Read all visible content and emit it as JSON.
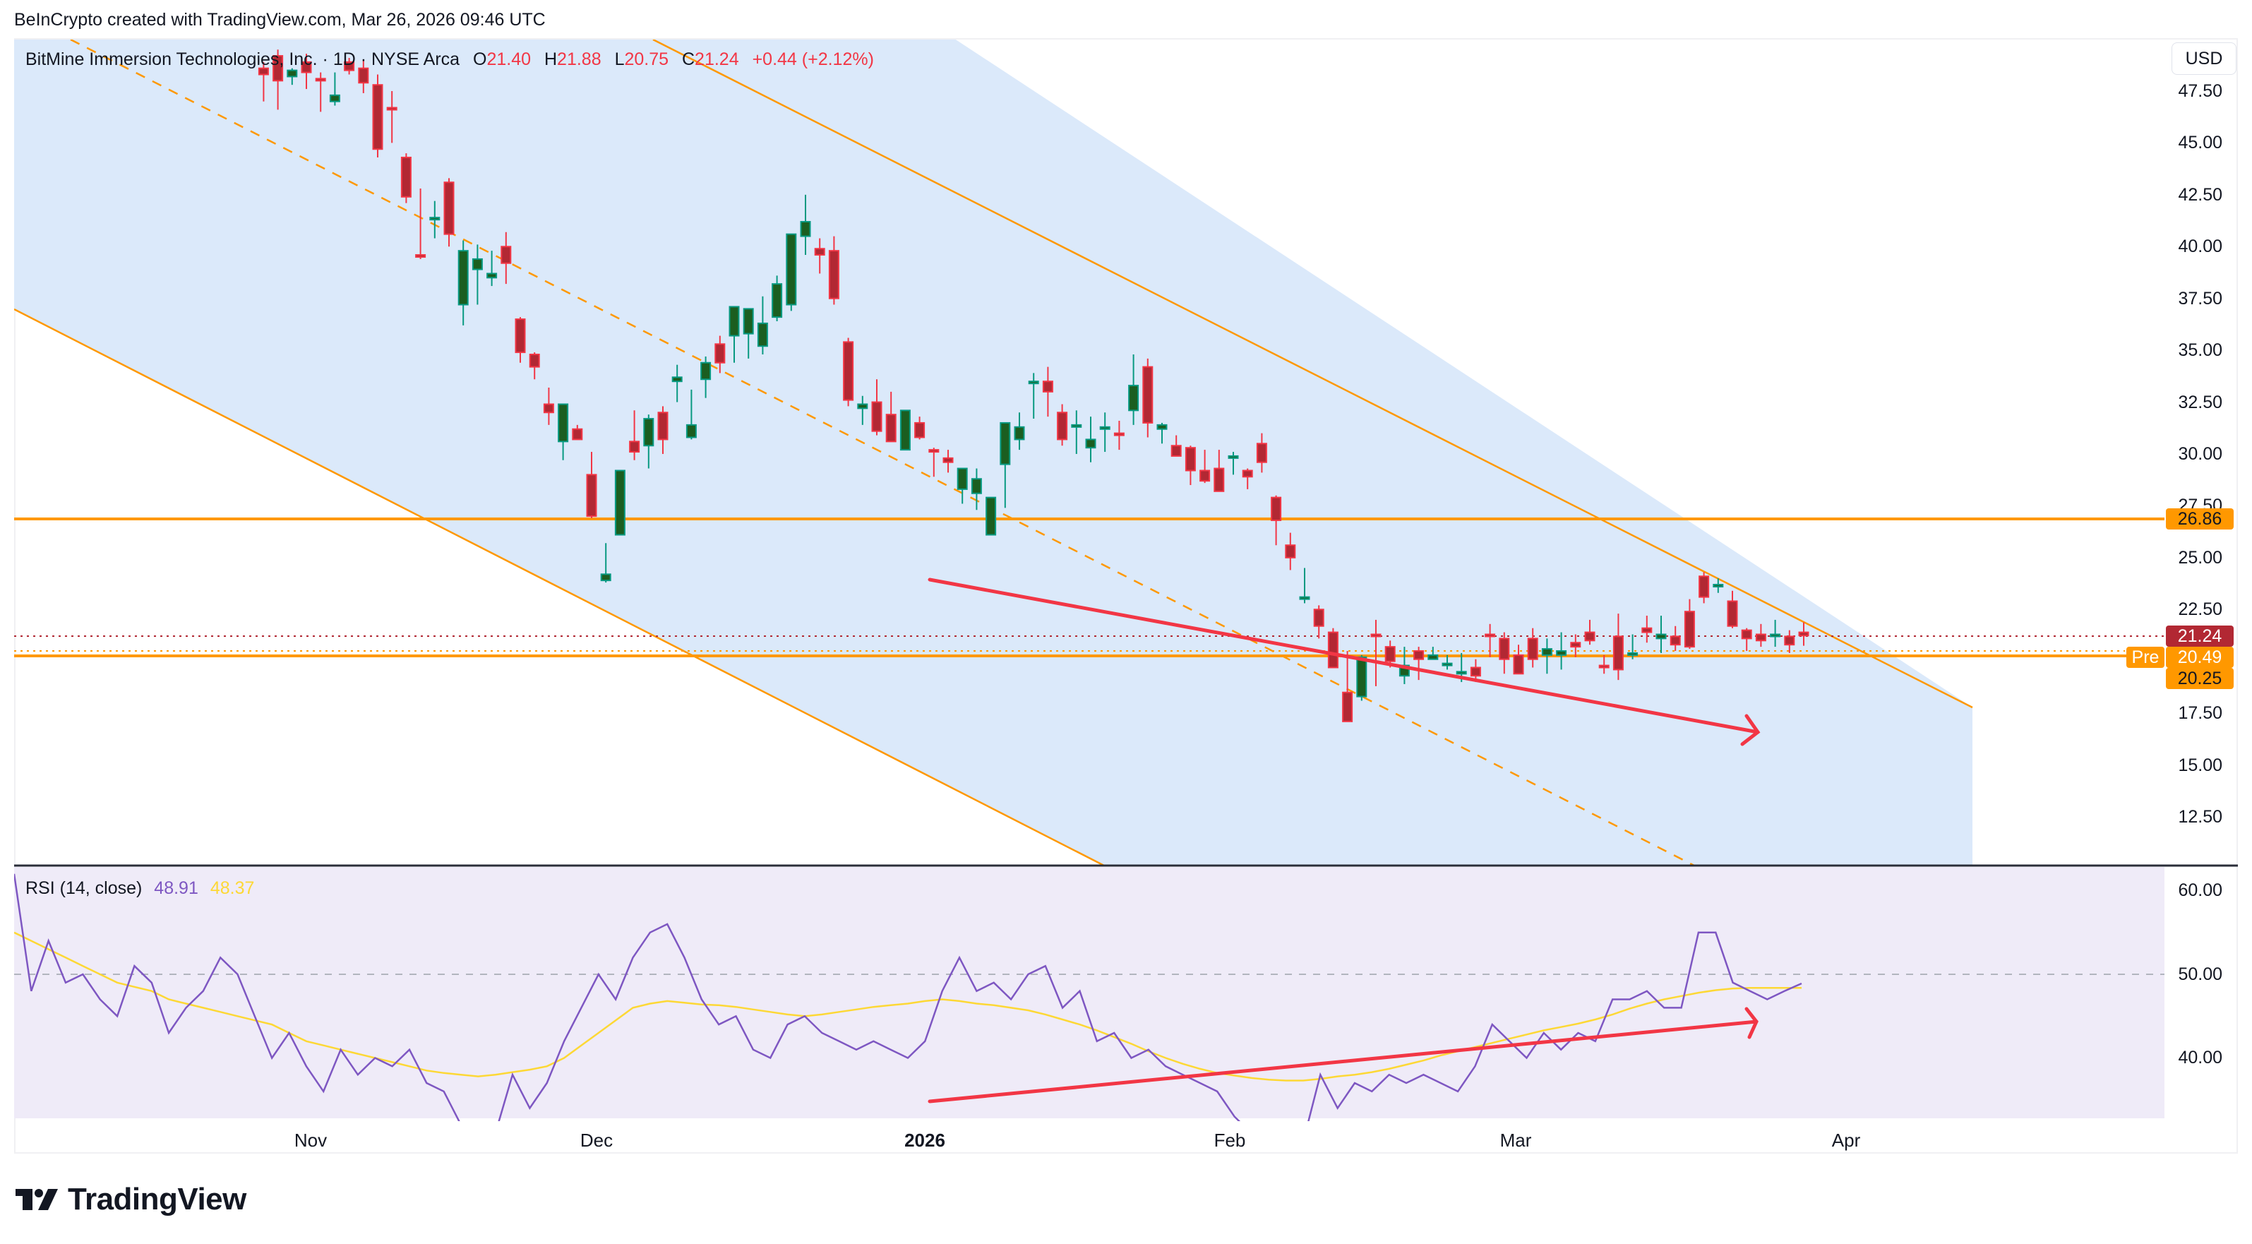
{
  "header": {
    "credit": "BeInCrypto created with TradingView.com, Mar 26, 2026 09:46 UTC"
  },
  "legend": {
    "symbol": "BitMine Immersion Technologies, Inc. · 1D · NYSE Arca",
    "open_label": "O",
    "open": "21.40",
    "high_label": "H",
    "high": "21.88",
    "low_label": "L",
    "low": "20.75",
    "close_label": "C",
    "close": "21.24",
    "change": "+0.44 (+2.12%)"
  },
  "price_axis": {
    "currency": "USD",
    "ticks": [
      "47.50",
      "45.00",
      "42.50",
      "40.00",
      "37.50",
      "35.00",
      "32.50",
      "30.00",
      "27.50",
      "25.00",
      "22.50",
      "17.50",
      "15.00",
      "12.50"
    ],
    "tags": {
      "resistance": "26.86",
      "last": "21.24",
      "pre_label": "Pre",
      "pre": "20.49",
      "support": "20.25"
    }
  },
  "rsi": {
    "label": "RSI (14, close)",
    "value": "48.91",
    "ma_value": "48.37",
    "ticks": [
      "60.00",
      "50.00",
      "40.00"
    ]
  },
  "time_axis": {
    "labels": [
      {
        "text": "Nov",
        "x": 440,
        "bold": false
      },
      {
        "text": "Dec",
        "x": 845,
        "bold": false
      },
      {
        "text": "2026",
        "x": 1310,
        "bold": true
      },
      {
        "text": "Feb",
        "x": 1742,
        "bold": false
      },
      {
        "text": "Mar",
        "x": 2147,
        "bold": false
      },
      {
        "text": "Apr",
        "x": 2615,
        "bold": false
      }
    ]
  },
  "footer": {
    "brand": "TradingView"
  },
  "colors": {
    "up": "#089981",
    "up_body": "#1b5e20",
    "down": "#f23645",
    "down_body": "#b22833",
    "channel_fill": "#dbe9fa",
    "channel_line": "#ff9800",
    "rsi_line": "#7e57c2",
    "rsi_ma": "#fdd835",
    "rsi_bg": "#efebf8",
    "arrow": "#f23645"
  },
  "chart_data": [
    {
      "type": "candlestick",
      "title": "BitMine Immersion Technologies, Inc. · 1D · NYSE Arca",
      "xlabel": "",
      "ylabel": "USD",
      "ylim": [
        10.5,
        49.0
      ],
      "x_ticks": [
        "Nov",
        "Dec",
        "2026",
        "Feb",
        "Mar",
        "Apr"
      ],
      "horizontal_levels": [
        26.86,
        20.25
      ],
      "last_price": 21.24,
      "premarket_price": 20.49,
      "ohlc_legend": {
        "open": 21.4,
        "high": 21.88,
        "low": 20.75,
        "close": 21.24,
        "change": 0.44,
        "change_pct": 2.12
      },
      "annotations": [
        "Descending parallel channel (orange)",
        "Dashed channel midline",
        "Red arrow: lower lows in price (bearish trend)"
      ],
      "candles": [
        [
          48.6,
          48.9,
          47.0,
          48.3
        ],
        [
          49.2,
          49.5,
          46.6,
          48.0
        ],
        [
          48.2,
          48.6,
          47.8,
          48.5
        ],
        [
          48.9,
          49.3,
          47.6,
          48.4
        ],
        [
          48.1,
          48.4,
          46.5,
          48.0
        ],
        [
          47.0,
          48.4,
          46.8,
          47.3
        ],
        [
          48.9,
          49.1,
          48.3,
          48.5
        ],
        [
          48.6,
          49.0,
          47.4,
          47.9
        ],
        [
          47.8,
          48.3,
          44.3,
          44.7
        ],
        [
          46.7,
          47.5,
          45.0,
          46.6
        ],
        [
          44.3,
          44.5,
          42.1,
          42.4
        ],
        [
          39.6,
          42.8,
          39.4,
          39.5
        ],
        [
          41.3,
          42.2,
          40.4,
          41.4
        ],
        [
          43.1,
          43.3,
          40.0,
          40.6
        ],
        [
          37.2,
          40.3,
          36.2,
          39.8
        ],
        [
          38.9,
          40.1,
          37.2,
          39.4
        ],
        [
          38.5,
          39.8,
          38.1,
          38.7
        ],
        [
          40.0,
          40.7,
          38.2,
          39.2
        ],
        [
          36.5,
          36.6,
          34.4,
          34.9
        ],
        [
          34.8,
          34.9,
          33.6,
          34.2
        ],
        [
          32.4,
          33.2,
          31.4,
          32.0
        ],
        [
          30.6,
          32.0,
          29.7,
          32.4
        ],
        [
          31.2,
          31.4,
          30.7,
          30.7
        ],
        [
          29.0,
          30.1,
          26.9,
          27.0
        ],
        [
          23.9,
          25.7,
          23.8,
          24.2
        ],
        [
          26.1,
          28.9,
          27.0,
          29.2
        ],
        [
          30.6,
          32.1,
          29.7,
          30.1
        ],
        [
          30.4,
          31.9,
          29.3,
          31.7
        ],
        [
          32.0,
          32.3,
          30.0,
          30.7
        ],
        [
          33.5,
          34.3,
          32.5,
          33.7
        ],
        [
          30.8,
          33.1,
          30.7,
          31.4
        ],
        [
          33.6,
          34.7,
          32.7,
          34.4
        ],
        [
          35.3,
          35.7,
          33.9,
          34.4
        ],
        [
          35.7,
          37.1,
          34.4,
          37.1
        ],
        [
          35.8,
          36.9,
          34.6,
          37.0
        ],
        [
          35.2,
          37.6,
          34.8,
          36.3
        ],
        [
          36.6,
          38.6,
          36.4,
          38.2
        ],
        [
          37.2,
          40.5,
          36.9,
          40.6
        ],
        [
          40.5,
          42.5,
          39.6,
          41.2
        ],
        [
          39.9,
          40.4,
          38.7,
          39.6
        ],
        [
          39.8,
          40.5,
          37.2,
          37.5
        ],
        [
          35.4,
          35.6,
          32.3,
          32.6
        ],
        [
          32.2,
          32.8,
          31.4,
          32.4
        ],
        [
          32.5,
          33.6,
          30.9,
          31.1
        ],
        [
          31.9,
          33.0,
          30.7,
          30.6
        ],
        [
          30.2,
          32.0,
          31.5,
          32.1
        ],
        [
          31.5,
          31.8,
          30.7,
          30.8
        ],
        [
          30.2,
          30.3,
          28.9,
          30.1
        ],
        [
          29.8,
          30.2,
          29.1,
          29.6
        ],
        [
          28.3,
          28.6,
          27.6,
          29.3
        ],
        [
          28.1,
          29.3,
          27.3,
          28.8
        ],
        [
          26.1,
          26.7,
          26.2,
          27.9
        ],
        [
          29.5,
          31.2,
          27.4,
          31.5
        ],
        [
          30.7,
          32.0,
          30.2,
          31.3
        ],
        [
          33.5,
          33.9,
          31.7,
          33.5
        ],
        [
          33.5,
          34.2,
          31.8,
          33.0
        ],
        [
          32.0,
          32.4,
          30.4,
          30.7
        ],
        [
          31.4,
          32.1,
          30.0,
          31.4
        ],
        [
          30.3,
          31.8,
          29.6,
          30.7
        ],
        [
          31.3,
          32.0,
          30.1,
          31.3
        ],
        [
          31.0,
          31.6,
          30.2,
          30.9
        ],
        [
          32.1,
          34.8,
          31.4,
          33.3
        ],
        [
          34.2,
          34.6,
          30.8,
          31.5
        ],
        [
          31.2,
          31.5,
          30.5,
          31.4
        ],
        [
          30.4,
          30.9,
          29.9,
          29.9
        ],
        [
          30.3,
          30.4,
          28.5,
          29.2
        ],
        [
          29.2,
          30.2,
          28.6,
          28.7
        ],
        [
          29.3,
          30.2,
          28.9,
          28.2
        ],
        [
          29.8,
          30.1,
          29.0,
          29.9
        ],
        [
          29.2,
          29.3,
          28.3,
          28.9
        ],
        [
          30.5,
          31.0,
          29.1,
          29.6
        ],
        [
          27.9,
          28.0,
          25.6,
          26.8
        ],
        [
          25.6,
          26.2,
          24.4,
          25.0
        ],
        [
          23.1,
          24.5,
          22.8,
          23.1
        ],
        [
          22.5,
          22.7,
          21.1,
          21.7
        ],
        [
          21.4,
          21.6,
          19.9,
          19.7
        ],
        [
          18.5,
          20.5,
          17.5,
          17.1
        ],
        [
          18.3,
          20.3,
          18.1,
          20.2
        ],
        [
          21.3,
          22.0,
          18.8,
          21.2
        ],
        [
          20.7,
          21.0,
          19.7,
          20.0
        ],
        [
          19.3,
          20.7,
          18.9,
          19.8
        ],
        [
          20.5,
          20.7,
          19.1,
          20.1
        ],
        [
          20.1,
          20.7,
          20.1,
          20.3
        ],
        [
          19.9,
          20.3,
          19.6,
          19.9
        ],
        [
          19.5,
          20.4,
          19.0,
          19.5
        ],
        [
          19.7,
          20.1,
          19.0,
          19.3
        ],
        [
          21.3,
          21.8,
          20.2,
          21.2
        ],
        [
          21.1,
          21.4,
          19.4,
          20.1
        ],
        [
          20.3,
          20.8,
          20.2,
          19.4
        ],
        [
          21.1,
          21.6,
          19.7,
          20.1
        ],
        [
          20.3,
          21.1,
          19.4,
          20.6
        ],
        [
          20.3,
          21.4,
          19.6,
          20.5
        ],
        [
          20.9,
          21.3,
          20.2,
          20.7
        ],
        [
          21.4,
          22.0,
          20.8,
          21.0
        ],
        [
          19.8,
          20.3,
          19.4,
          19.7
        ],
        [
          21.2,
          22.3,
          19.1,
          19.6
        ],
        [
          20.3,
          21.3,
          20.1,
          20.4
        ],
        [
          21.6,
          22.2,
          20.9,
          21.4
        ],
        [
          21.1,
          22.2,
          20.4,
          21.3
        ],
        [
          21.2,
          21.7,
          20.5,
          20.8
        ],
        [
          22.4,
          23.0,
          20.6,
          20.7
        ],
        [
          24.1,
          24.3,
          22.8,
          23.1
        ],
        [
          23.7,
          24.0,
          23.3,
          23.7
        ],
        [
          22.9,
          23.4,
          21.6,
          21.7
        ],
        [
          21.5,
          21.6,
          20.5,
          21.1
        ],
        [
          21.3,
          21.8,
          20.7,
          21.0
        ],
        [
          21.3,
          22.0,
          20.7,
          21.3
        ],
        [
          21.2,
          21.5,
          20.4,
          20.8
        ],
        [
          21.4,
          21.88,
          20.75,
          21.24
        ]
      ]
    },
    {
      "type": "line",
      "title": "RSI (14, close)",
      "ylim": [
        33,
        62
      ],
      "y_ticks": [
        60,
        50,
        40
      ],
      "reference_line": 50,
      "series": [
        {
          "name": "RSI",
          "latest": 48.91
        },
        {
          "name": "RSI-based MA",
          "latest": 48.37
        }
      ],
      "annotations": [
        "Red arrow: higher lows in RSI (bullish divergence)"
      ]
    }
  ]
}
